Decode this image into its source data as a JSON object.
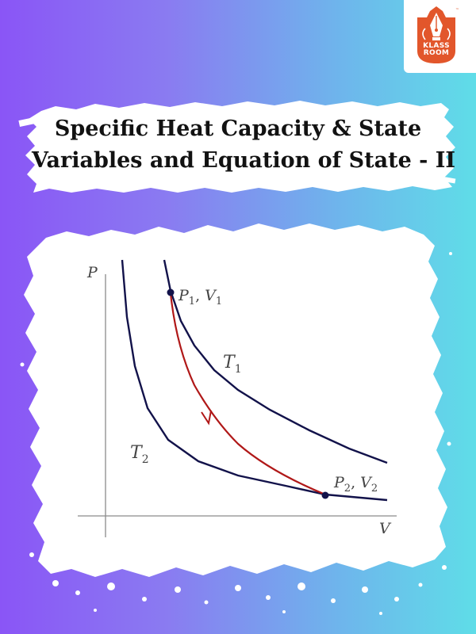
{
  "logo": {
    "name_line1": "KLASS",
    "name_line2": "ROOM",
    "trademark": "™",
    "color": "#e2562b",
    "icon": "fountain-pen-nib-icon"
  },
  "title": {
    "line1": "Specific Heat Capacity & State",
    "line2": "Variables and Equation of State - II"
  },
  "graph": {
    "axis_p": "P",
    "axis_v": "V",
    "isotherm_t1": "T",
    "isotherm_t1_sub": "1",
    "isotherm_t2": "T",
    "isotherm_t2_sub": "2",
    "point1_p": "P",
    "point1_p_sub": "1",
    "point1_v": "V",
    "point1_v_sub": "1",
    "point1_sep": ",",
    "point2_p": "P",
    "point2_p_sub": "2",
    "point2_v": "V",
    "point2_v_sub": "2",
    "point2_sep": ",",
    "isotherm_color": "#12124a",
    "process_color": "#b01818"
  }
}
